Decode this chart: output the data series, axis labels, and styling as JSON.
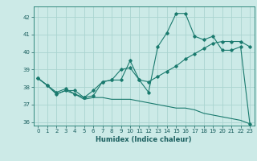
{
  "xlabel": "Humidex (Indice chaleur)",
  "xlim_min": -0.5,
  "xlim_max": 23.5,
  "ylim_min": 35.8,
  "ylim_max": 42.6,
  "yticks": [
    36,
    37,
    38,
    39,
    40,
    41,
    42
  ],
  "xticks": [
    0,
    1,
    2,
    3,
    4,
    5,
    6,
    7,
    8,
    9,
    10,
    11,
    12,
    13,
    14,
    15,
    16,
    17,
    18,
    19,
    20,
    21,
    22,
    23
  ],
  "background_color": "#cceae7",
  "grid_color": "#aad4d0",
  "line_color": "#1a7a6e",
  "series1_x": [
    0,
    1,
    2,
    3,
    4,
    5,
    6,
    7,
    8,
    9,
    10,
    11,
    12,
    13,
    14,
    15,
    16,
    17,
    18,
    19,
    20,
    21,
    22,
    23
  ],
  "series1_y": [
    38.5,
    38.1,
    37.6,
    37.8,
    37.8,
    37.4,
    37.5,
    38.3,
    38.4,
    39.0,
    39.1,
    38.4,
    37.7,
    40.3,
    41.1,
    42.2,
    42.2,
    40.9,
    40.7,
    40.9,
    40.1,
    40.1,
    40.3,
    35.9
  ],
  "series2_x": [
    0,
    1,
    2,
    3,
    4,
    5,
    6,
    7,
    8,
    9,
    10,
    11,
    12,
    13,
    14,
    15,
    16,
    17,
    18,
    19,
    20,
    21,
    22,
    23
  ],
  "series2_y": [
    38.5,
    38.1,
    37.7,
    37.9,
    37.6,
    37.4,
    37.8,
    38.3,
    38.4,
    38.4,
    39.5,
    38.4,
    38.3,
    38.6,
    38.9,
    39.2,
    39.6,
    39.9,
    40.2,
    40.5,
    40.6,
    40.6,
    40.6,
    40.3
  ],
  "series3_x": [
    0,
    1,
    2,
    3,
    4,
    5,
    6,
    7,
    8,
    9,
    10,
    11,
    12,
    13,
    14,
    15,
    16,
    17,
    18,
    19,
    20,
    21,
    22,
    23
  ],
  "series3_y": [
    38.5,
    38.1,
    37.6,
    37.8,
    37.6,
    37.3,
    37.4,
    37.4,
    37.3,
    37.3,
    37.3,
    37.2,
    37.1,
    37.0,
    36.9,
    36.8,
    36.8,
    36.7,
    36.5,
    36.4,
    36.3,
    36.2,
    36.1,
    35.9
  ]
}
